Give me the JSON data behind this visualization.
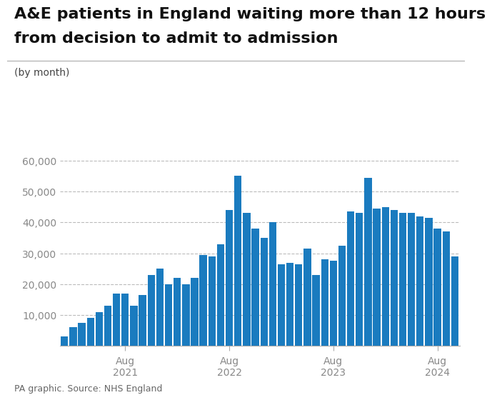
{
  "title_line1": "A&E patients in England waiting more than 12 hours",
  "title_line2": "from decision to admit to admission",
  "subtitle": "(by month)",
  "footer": "PA graphic. Source: NHS England",
  "bar_color": "#1a7bbf",
  "background_color": "#ffffff",
  "ylim": [
    0,
    65000
  ],
  "yticks": [
    0,
    10000,
    20000,
    30000,
    40000,
    50000,
    60000
  ],
  "ytick_labels": [
    "",
    "10,000",
    "20,000",
    "30,000",
    "40,000",
    "50,000",
    "60,000"
  ],
  "values": [
    3000,
    6000,
    7500,
    9000,
    11000,
    13000,
    17000,
    17000,
    13000,
    16500,
    23000,
    25000,
    20000,
    22000,
    20000,
    22000,
    29500,
    29000,
    33000,
    44000,
    55000,
    43000,
    38000,
    35000,
    40000,
    26500,
    27000,
    26500,
    31500,
    23000,
    28000,
    27500,
    32500,
    43500,
    43000,
    54500,
    44500,
    45000,
    44000,
    43000,
    43000,
    42000,
    41500,
    38000,
    37000,
    29000
  ],
  "xtick_positions": [
    7,
    19,
    31,
    43
  ],
  "xtick_labels": [
    "Aug\n2021",
    "Aug\n2022",
    "Aug\n2023",
    "Aug\n2024"
  ],
  "grid_color": "#bbbbbb",
  "grid_linestyle": "--",
  "grid_linewidth": 0.8,
  "title_fontsize": 16,
  "subtitle_fontsize": 10,
  "ytick_fontsize": 10,
  "xtick_fontsize": 10,
  "footer_fontsize": 9
}
